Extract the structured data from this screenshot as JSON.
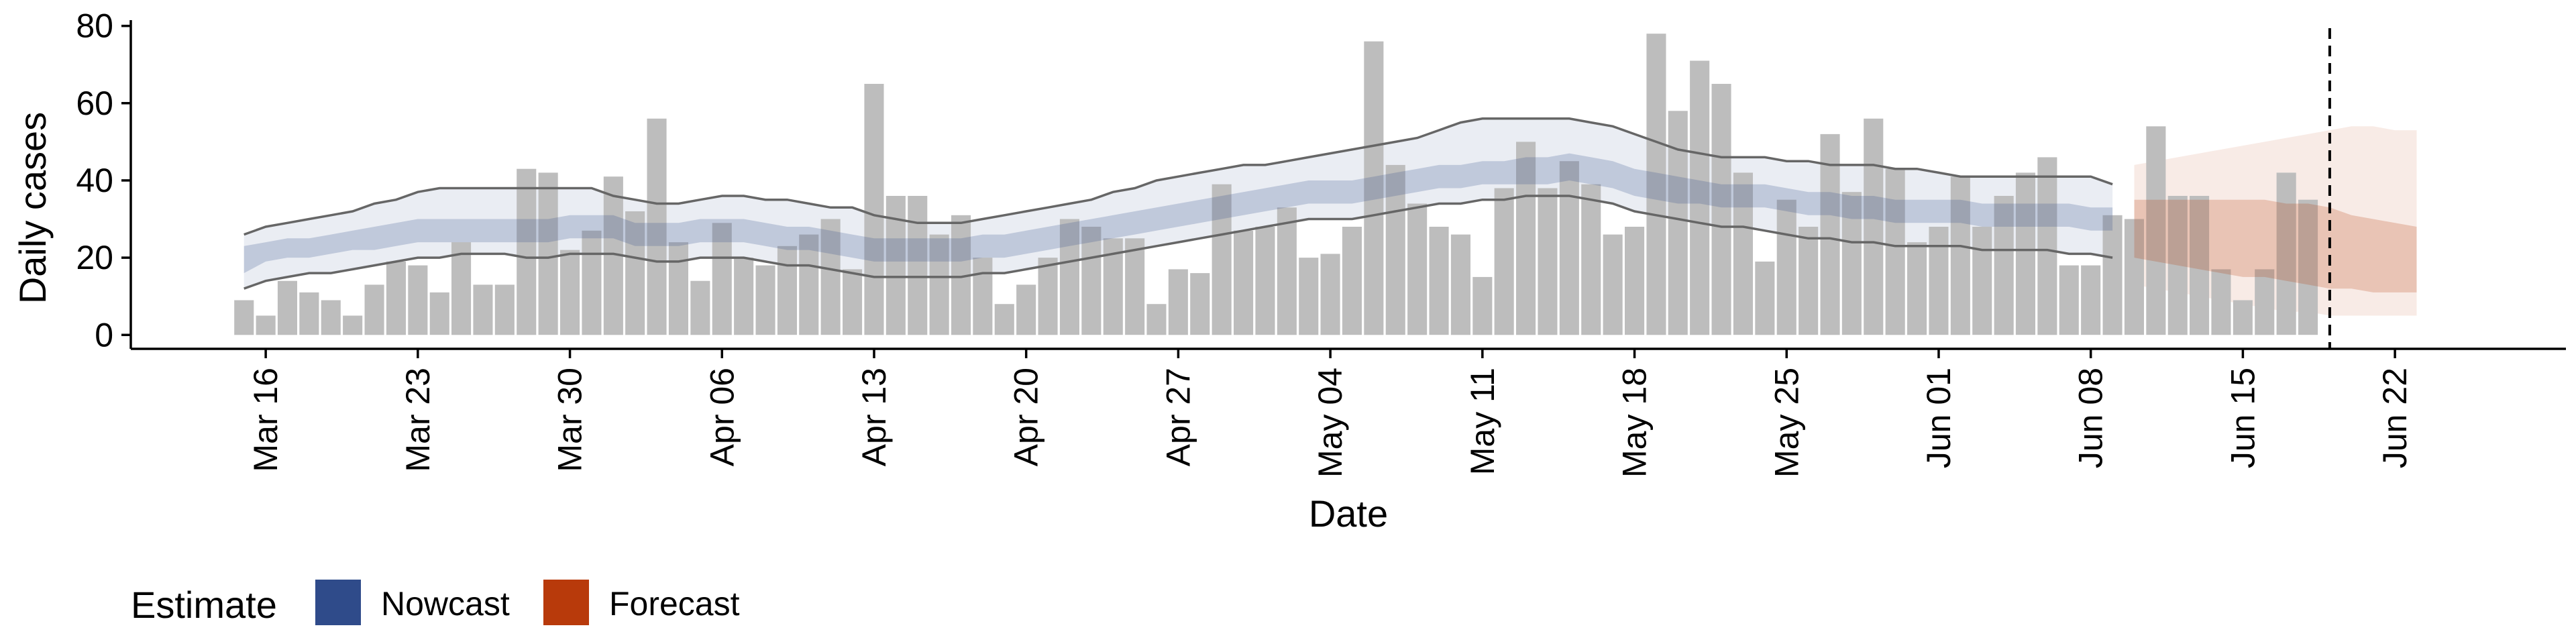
{
  "chart_data": {
    "type": "bar",
    "xlabel": "Date",
    "ylabel": "Daily cases",
    "ylim": [
      0,
      80
    ],
    "yticks": [
      0,
      20,
      40,
      60,
      80
    ],
    "x_start": "2020-03-15",
    "xticks": [
      "Mar 16",
      "Mar 23",
      "Mar 30",
      "Apr 06",
      "Apr 13",
      "Apr 20",
      "Apr 27",
      "May 04",
      "May 11",
      "May 18",
      "May 25",
      "Jun 01",
      "Jun 08",
      "Jun 15",
      "Jun 22"
    ],
    "xtick_dates": [
      "2020-03-16",
      "2020-03-23",
      "2020-03-30",
      "2020-04-06",
      "2020-04-13",
      "2020-04-20",
      "2020-04-27",
      "2020-05-04",
      "2020-05-11",
      "2020-05-18",
      "2020-05-25",
      "2020-06-01",
      "2020-06-08",
      "2020-06-15",
      "2020-06-22"
    ],
    "xlim": [
      "2020-03-10",
      "2020-06-25"
    ],
    "vline_date": "2020-06-19",
    "vline_style": "dashed",
    "grid": false,
    "legend_position": "bottom-left",
    "legend": {
      "title": "Estimate",
      "items": [
        {
          "label": "Nowcast",
          "color": "#2f4b8a"
        },
        {
          "label": "Forecast",
          "color": "#b83a0b"
        }
      ]
    },
    "bar_color": "#bdbdbd",
    "cases": [
      9,
      5,
      14,
      11,
      9,
      5,
      13,
      19,
      18,
      11,
      24,
      13,
      13,
      43,
      42,
      22,
      27,
      41,
      32,
      56,
      24,
      14,
      29,
      20,
      18,
      23,
      26,
      30,
      17,
      65,
      36,
      36,
      26,
      31,
      20,
      8,
      13,
      20,
      30,
      28,
      25,
      25,
      8,
      17,
      16,
      39,
      27,
      28,
      33,
      20,
      21,
      28,
      76,
      44,
      34,
      28,
      26,
      15,
      38,
      50,
      38,
      45,
      39,
      26,
      28,
      78,
      58,
      71,
      65,
      42,
      19,
      35,
      28,
      52,
      37,
      56,
      43,
      24,
      28,
      41,
      28,
      36,
      42,
      46,
      18,
      18,
      31,
      30,
      54,
      36,
      36,
      17,
      9,
      17,
      42,
      35
    ],
    "series": [
      {
        "name": "Nowcast",
        "x_start": "2020-03-15",
        "median": [
          19,
          21,
          22,
          22,
          23,
          24,
          25,
          26,
          27,
          27,
          27,
          27,
          27,
          27,
          27,
          28,
          28,
          28,
          26,
          26,
          26,
          27,
          27,
          27,
          26,
          25,
          25,
          24,
          23,
          22,
          22,
          22,
          22,
          22,
          23,
          23,
          24,
          25,
          26,
          27,
          28,
          29,
          30,
          31,
          32,
          33,
          34,
          35,
          36,
          37,
          37,
          37,
          38,
          39,
          40,
          41,
          41,
          42,
          42,
          42,
          42,
          43,
          42,
          41,
          39,
          38,
          37,
          37,
          36,
          36,
          36,
          35,
          34,
          34,
          33,
          33,
          32,
          32,
          32,
          32,
          31,
          31,
          31,
          31,
          31,
          30,
          30
        ],
        "inner": [
          [
            16,
            23
          ],
          [
            19,
            24
          ],
          [
            20,
            25
          ],
          [
            20,
            25
          ],
          [
            21,
            26
          ],
          [
            22,
            27
          ],
          [
            22,
            28
          ],
          [
            23,
            29
          ],
          [
            24,
            30
          ],
          [
            24,
            30
          ],
          [
            24,
            30
          ],
          [
            24,
            30
          ],
          [
            24,
            30
          ],
          [
            24,
            30
          ],
          [
            24,
            30
          ],
          [
            25,
            31
          ],
          [
            25,
            31
          ],
          [
            25,
            31
          ],
          [
            23,
            29
          ],
          [
            23,
            29
          ],
          [
            23,
            29
          ],
          [
            24,
            30
          ],
          [
            24,
            30
          ],
          [
            24,
            30
          ],
          [
            23,
            29
          ],
          [
            22,
            28
          ],
          [
            22,
            28
          ],
          [
            21,
            27
          ],
          [
            20,
            26
          ],
          [
            19,
            25
          ],
          [
            19,
            25
          ],
          [
            19,
            25
          ],
          [
            19,
            25
          ],
          [
            19,
            25
          ],
          [
            20,
            26
          ],
          [
            20,
            26
          ],
          [
            21,
            27
          ],
          [
            22,
            28
          ],
          [
            23,
            29
          ],
          [
            24,
            30
          ],
          [
            25,
            31
          ],
          [
            26,
            32
          ],
          [
            27,
            33
          ],
          [
            28,
            34
          ],
          [
            29,
            35
          ],
          [
            30,
            36
          ],
          [
            31,
            37
          ],
          [
            32,
            38
          ],
          [
            33,
            39
          ],
          [
            34,
            40
          ],
          [
            34,
            40
          ],
          [
            34,
            40
          ],
          [
            35,
            41
          ],
          [
            36,
            42
          ],
          [
            37,
            43
          ],
          [
            38,
            44
          ],
          [
            38,
            44
          ],
          [
            39,
            45
          ],
          [
            39,
            45
          ],
          [
            39,
            46
          ],
          [
            39,
            46
          ],
          [
            40,
            47
          ],
          [
            39,
            46
          ],
          [
            38,
            45
          ],
          [
            36,
            43
          ],
          [
            35,
            42
          ],
          [
            34,
            41
          ],
          [
            34,
            40
          ],
          [
            33,
            39
          ],
          [
            33,
            39
          ],
          [
            33,
            39
          ],
          [
            32,
            38
          ],
          [
            31,
            37
          ],
          [
            31,
            37
          ],
          [
            30,
            36
          ],
          [
            30,
            36
          ],
          [
            29,
            35
          ],
          [
            29,
            35
          ],
          [
            29,
            35
          ],
          [
            29,
            35
          ],
          [
            28,
            34
          ],
          [
            28,
            34
          ],
          [
            28,
            34
          ],
          [
            28,
            34
          ],
          [
            28,
            34
          ],
          [
            27,
            33
          ],
          [
            27,
            33
          ]
        ],
        "outer": [
          [
            12,
            26
          ],
          [
            14,
            28
          ],
          [
            15,
            29
          ],
          [
            16,
            30
          ],
          [
            16,
            31
          ],
          [
            17,
            32
          ],
          [
            18,
            34
          ],
          [
            19,
            35
          ],
          [
            20,
            37
          ],
          [
            20,
            38
          ],
          [
            21,
            38
          ],
          [
            21,
            38
          ],
          [
            21,
            38
          ],
          [
            20,
            38
          ],
          [
            20,
            38
          ],
          [
            21,
            38
          ],
          [
            21,
            38
          ],
          [
            21,
            36
          ],
          [
            20,
            35
          ],
          [
            19,
            34
          ],
          [
            19,
            34
          ],
          [
            20,
            35
          ],
          [
            20,
            36
          ],
          [
            20,
            36
          ],
          [
            19,
            35
          ],
          [
            18,
            35
          ],
          [
            18,
            34
          ],
          [
            17,
            33
          ],
          [
            16,
            33
          ],
          [
            15,
            31
          ],
          [
            15,
            30
          ],
          [
            15,
            29
          ],
          [
            15,
            29
          ],
          [
            15,
            29
          ],
          [
            16,
            30
          ],
          [
            16,
            31
          ],
          [
            17,
            32
          ],
          [
            18,
            33
          ],
          [
            19,
            34
          ],
          [
            20,
            35
          ],
          [
            21,
            37
          ],
          [
            22,
            38
          ],
          [
            23,
            40
          ],
          [
            24,
            41
          ],
          [
            25,
            42
          ],
          [
            26,
            43
          ],
          [
            27,
            44
          ],
          [
            28,
            44
          ],
          [
            29,
            45
          ],
          [
            30,
            46
          ],
          [
            30,
            47
          ],
          [
            30,
            48
          ],
          [
            31,
            49
          ],
          [
            32,
            50
          ],
          [
            33,
            51
          ],
          [
            34,
            53
          ],
          [
            34,
            55
          ],
          [
            35,
            56
          ],
          [
            35,
            56
          ],
          [
            36,
            56
          ],
          [
            36,
            56
          ],
          [
            36,
            56
          ],
          [
            35,
            55
          ],
          [
            34,
            54
          ],
          [
            32,
            52
          ],
          [
            31,
            50
          ],
          [
            30,
            48
          ],
          [
            29,
            47
          ],
          [
            28,
            46
          ],
          [
            28,
            46
          ],
          [
            27,
            46
          ],
          [
            26,
            45
          ],
          [
            25,
            45
          ],
          [
            25,
            44
          ],
          [
            24,
            44
          ],
          [
            24,
            44
          ],
          [
            23,
            43
          ],
          [
            23,
            43
          ],
          [
            23,
            42
          ],
          [
            23,
            41
          ],
          [
            22,
            41
          ],
          [
            22,
            41
          ],
          [
            22,
            41
          ],
          [
            22,
            41
          ],
          [
            21,
            41
          ],
          [
            21,
            41
          ],
          [
            20,
            39
          ]
        ]
      },
      {
        "name": "Forecast",
        "x_start": "2020-06-10",
        "median": [
          26,
          26,
          25,
          25,
          24,
          24,
          23,
          23,
          22,
          22,
          21,
          20,
          19,
          19
        ],
        "inner": [
          [
            20,
            35
          ],
          [
            19,
            35
          ],
          [
            18,
            35
          ],
          [
            17,
            35
          ],
          [
            16,
            35
          ],
          [
            15,
            35
          ],
          [
            15,
            35
          ],
          [
            14,
            34
          ],
          [
            13,
            34
          ],
          [
            12,
            33
          ],
          [
            12,
            31
          ],
          [
            11,
            30
          ],
          [
            11,
            29
          ],
          [
            11,
            28
          ]
        ],
        "outer": [
          [
            13,
            44
          ],
          [
            12,
            45
          ],
          [
            11,
            46
          ],
          [
            10,
            47
          ],
          [
            9,
            48
          ],
          [
            8,
            49
          ],
          [
            7,
            50
          ],
          [
            6,
            51
          ],
          [
            6,
            52
          ],
          [
            5,
            53
          ],
          [
            5,
            54
          ],
          [
            5,
            54
          ],
          [
            5,
            53
          ],
          [
            5,
            53
          ]
        ]
      }
    ]
  }
}
